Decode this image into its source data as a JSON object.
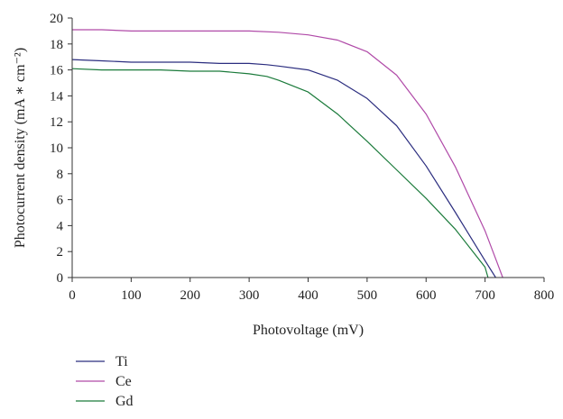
{
  "chart_data": {
    "type": "line",
    "xlabel": "Photovoltage (mV)",
    "ylabel": "Photocurrent density (mA ∗ cm⁻²)",
    "xlim": [
      0,
      800
    ],
    "ylim": [
      0,
      20
    ],
    "xticks": [
      0,
      100,
      200,
      300,
      400,
      500,
      600,
      700,
      800
    ],
    "yticks": [
      0,
      2,
      4,
      6,
      8,
      10,
      12,
      14,
      16,
      18,
      20
    ],
    "grid": false,
    "legend_position": "bottom-left, below plot",
    "series": [
      {
        "name": "Ti",
        "color": "#2b2d7f",
        "x": [
          0,
          50,
          100,
          150,
          200,
          250,
          300,
          330,
          350,
          400,
          450,
          500,
          550,
          600,
          650,
          700,
          718
        ],
        "y": [
          16.8,
          16.7,
          16.6,
          16.6,
          16.6,
          16.5,
          16.5,
          16.4,
          16.3,
          16.0,
          15.2,
          13.8,
          11.7,
          8.6,
          5.0,
          1.3,
          0
        ]
      },
      {
        "name": "Ce",
        "color": "#b04aa8",
        "x": [
          0,
          50,
          100,
          150,
          200,
          250,
          300,
          350,
          400,
          450,
          500,
          550,
          600,
          650,
          700,
          720,
          730
        ],
        "y": [
          19.1,
          19.1,
          19.0,
          19.0,
          19.0,
          19.0,
          19.0,
          18.9,
          18.7,
          18.3,
          17.4,
          15.6,
          12.6,
          8.5,
          3.6,
          1.2,
          0
        ]
      },
      {
        "name": "Gd",
        "color": "#1a7a3a",
        "x": [
          0,
          50,
          100,
          150,
          200,
          250,
          300,
          330,
          350,
          400,
          450,
          500,
          550,
          600,
          650,
          700,
          705
        ],
        "y": [
          16.1,
          16.0,
          16.0,
          16.0,
          15.9,
          15.9,
          15.7,
          15.5,
          15.2,
          14.3,
          12.6,
          10.5,
          8.3,
          6.1,
          3.7,
          0.8,
          0
        ]
      }
    ]
  }
}
